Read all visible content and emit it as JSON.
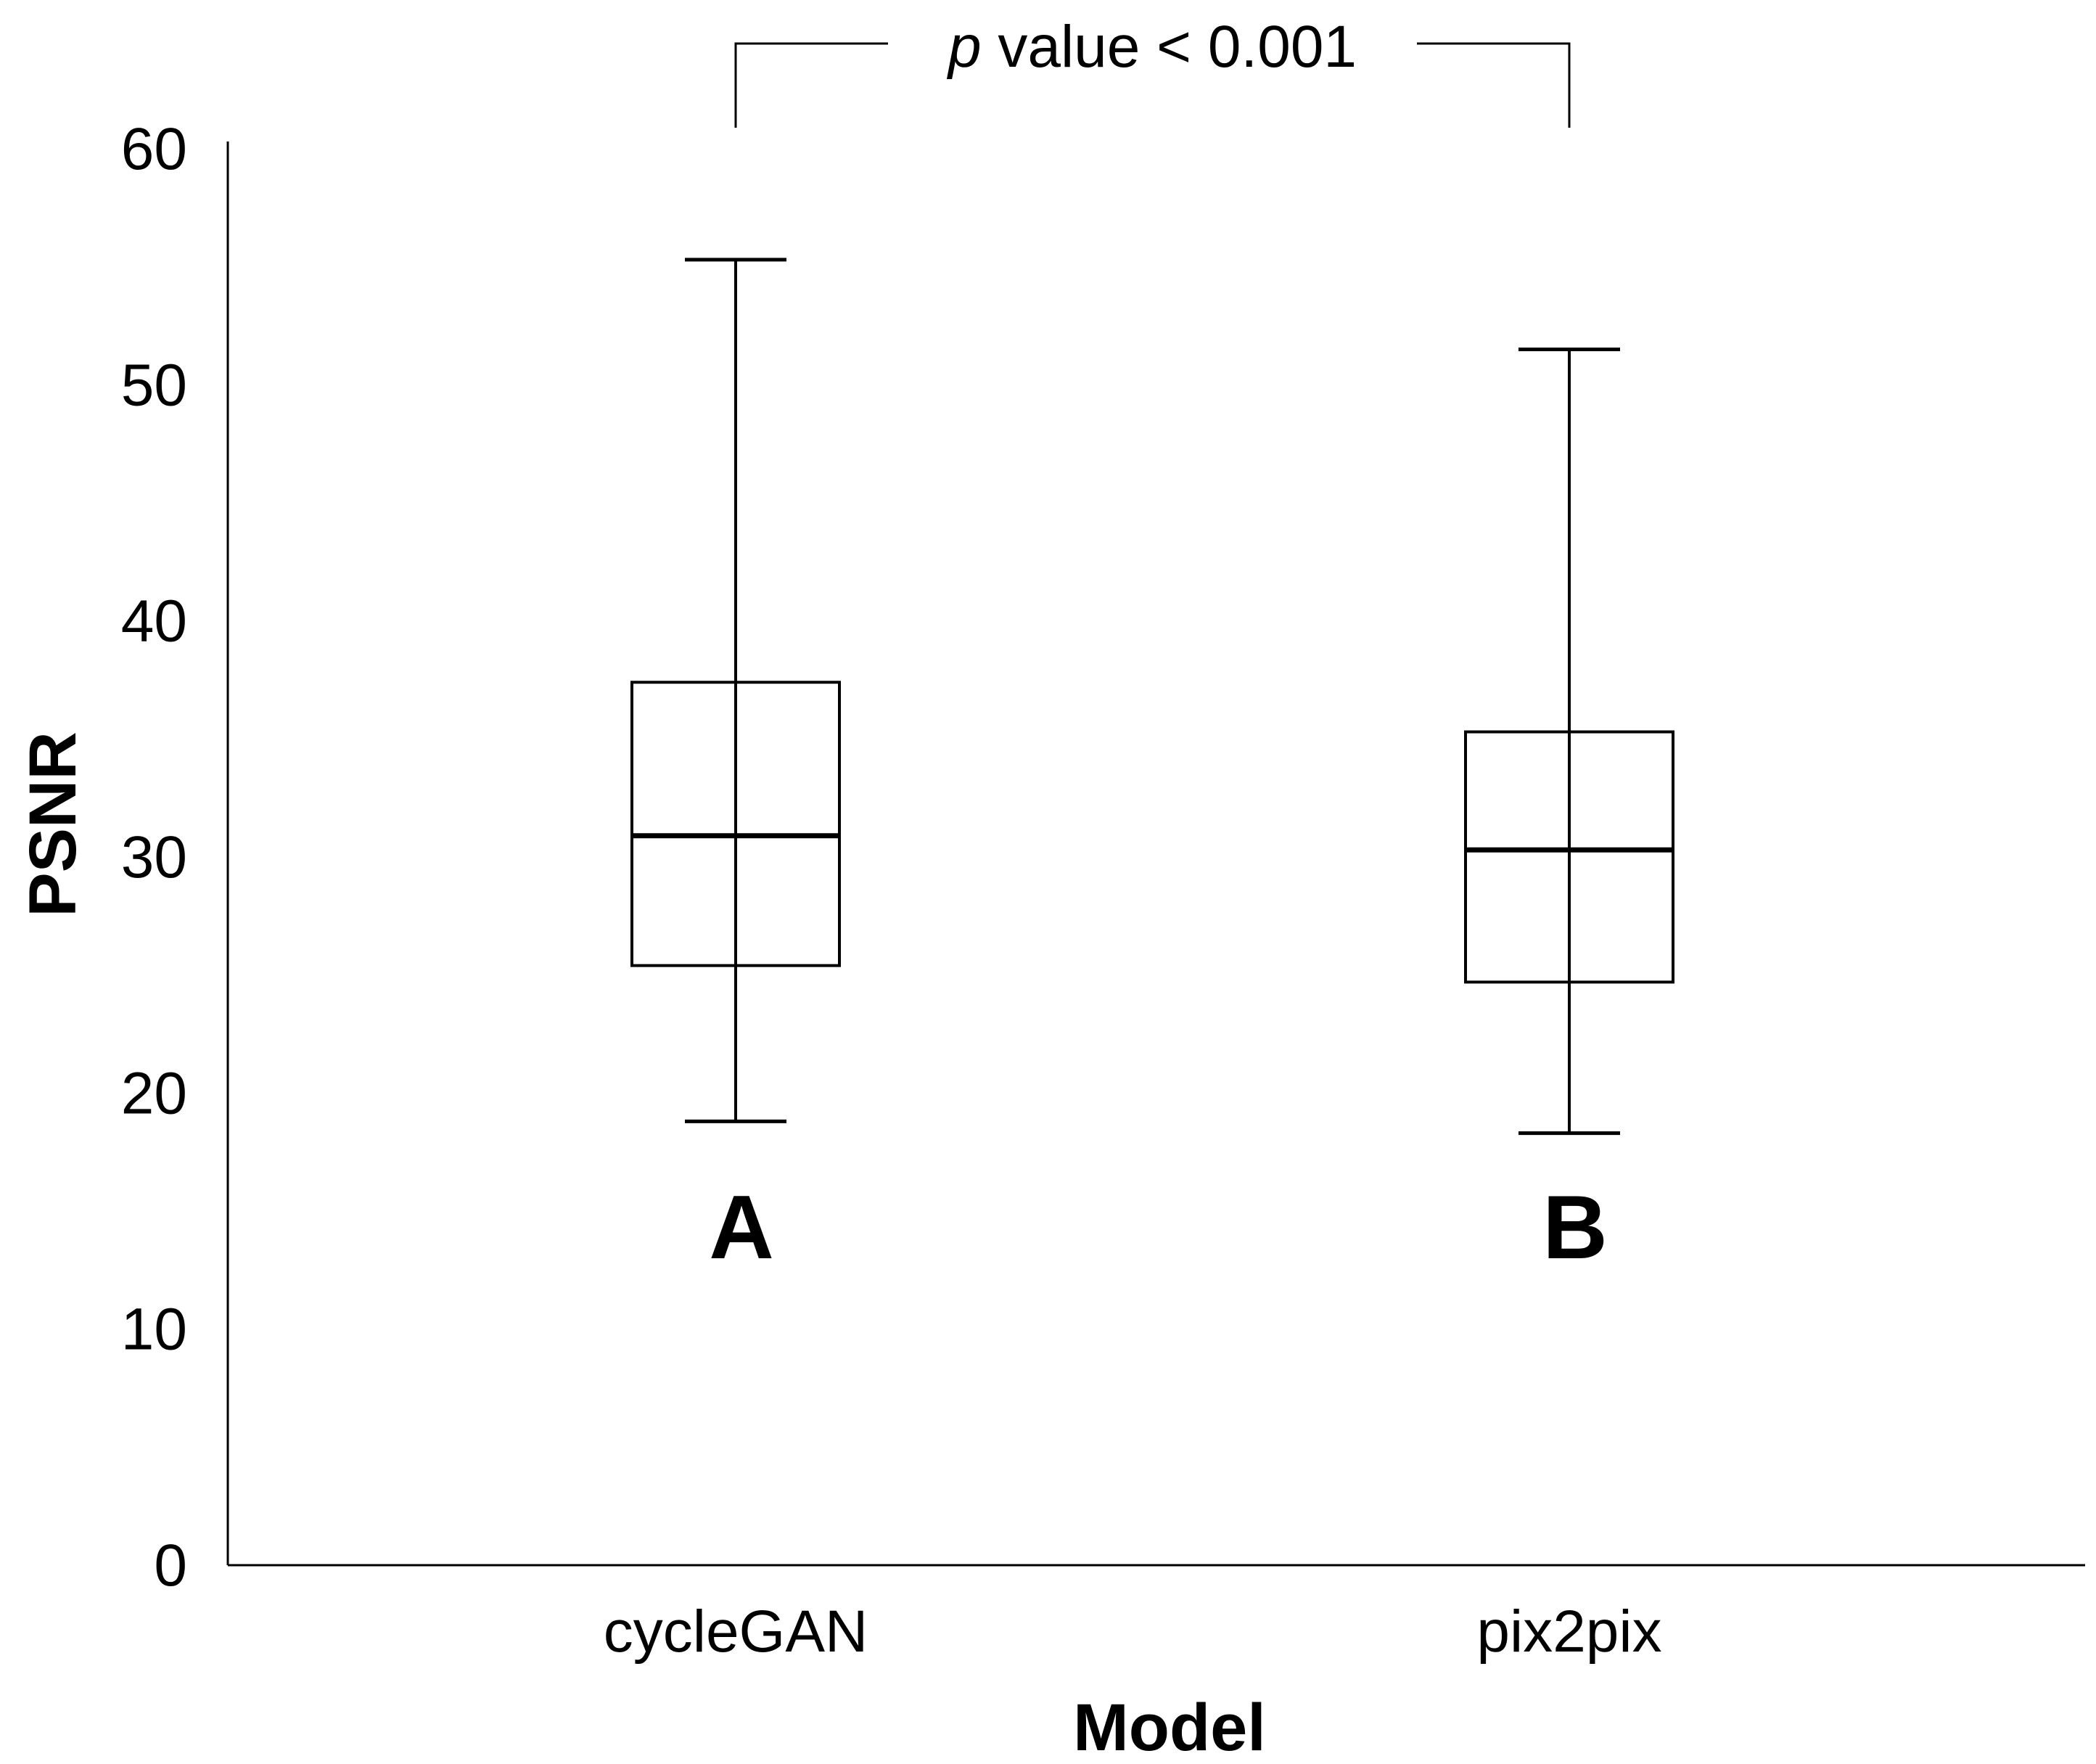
{
  "chart_data": {
    "type": "box",
    "title": "",
    "xlabel": "Model",
    "ylabel": "PSNR",
    "ylim": [
      0,
      60
    ],
    "yticks": [
      "0",
      "10",
      "20",
      "30",
      "40",
      "50",
      "60"
    ],
    "categories": [
      "cycleGAN",
      "pix2pix"
    ],
    "boxes": [
      {
        "name": "cycleGAN",
        "group_label": "A",
        "min": 18.8,
        "q1": 25.4,
        "median": 30.9,
        "q3": 37.4,
        "max": 55.3
      },
      {
        "name": "pix2pix",
        "group_label": "B",
        "min": 18.3,
        "q1": 24.7,
        "median": 30.3,
        "q3": 35.3,
        "max": 51.5
      }
    ],
    "annotation": {
      "italic": "p",
      "text": " value < 0.001"
    },
    "grid": false
  }
}
